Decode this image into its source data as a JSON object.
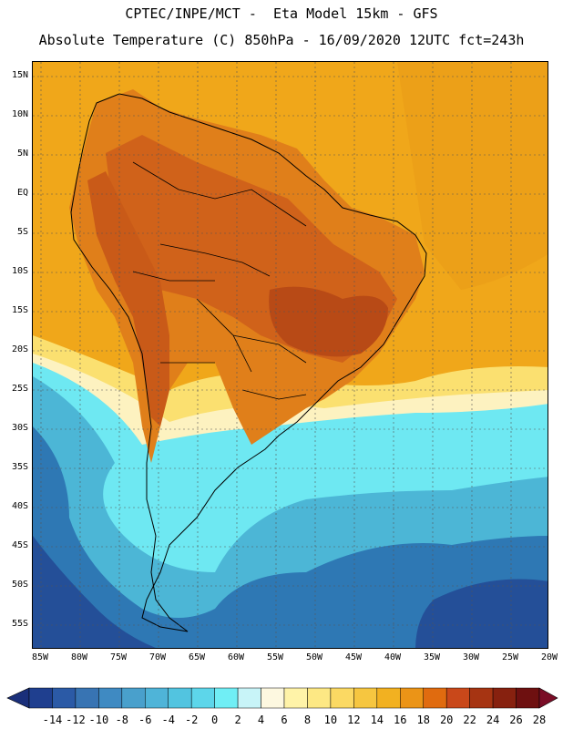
{
  "title": {
    "line1": "CPTEC/INPE/MCT -  Eta Model 15km - GFS",
    "line2": "Absolute Temperature (C) 850hPa - 16/09/2020 12UTC fct=243h"
  },
  "map": {
    "region": "South America",
    "lat_labels": [
      "15N",
      "10N",
      "5N",
      "EQ",
      "5S",
      "10S",
      "15S",
      "20S",
      "25S",
      "30S",
      "35S",
      "40S",
      "45S",
      "50S",
      "55S"
    ],
    "lon_labels": [
      "85W",
      "80W",
      "75W",
      "70W",
      "65W",
      "60W",
      "55W",
      "50W",
      "45W",
      "40W",
      "35W",
      "30W",
      "25W",
      "20W"
    ]
  },
  "colorbar": {
    "labels": [
      "-14",
      "-12",
      "-10",
      "-8",
      "-6",
      "-4",
      "-2",
      "0",
      "2",
      "4",
      "6",
      "8",
      "10",
      "12",
      "14",
      "16",
      "18",
      "20",
      "22",
      "24",
      "26",
      "28"
    ],
    "colors": [
      "#1f3f8f",
      "#2b5aa6",
      "#3874b3",
      "#3f8ac2",
      "#49a0cc",
      "#4fb4d8",
      "#52c4e0",
      "#5dd6ea",
      "#70eef5",
      "#c8f4f8",
      "#fdf8e0",
      "#fff3a8",
      "#fde884",
      "#fbd963",
      "#f6c640",
      "#f2b121",
      "#eb9417",
      "#e06b0f",
      "#c9481a",
      "#a63412",
      "#87210f",
      "#6e1010"
    ],
    "under_color": "#1a2f7a",
    "over_color": "#7a0c26"
  },
  "fills": {
    "ocean_warm": "#f0a71a",
    "ocean_warmer": "#eca018",
    "land_hot": "#e07f1a",
    "land_hotter": "#d0621a",
    "land_hottest": "#b84a16",
    "mild_yellow": "#fbe070",
    "pale": "#fdf2c0",
    "cyan": "#6ee8f2",
    "mid_blue": "#4cb6d6",
    "deep_blue": "#2e78b4",
    "deepest_blue": "#244f98",
    "coast": "#000000",
    "grid": "#555555"
  }
}
